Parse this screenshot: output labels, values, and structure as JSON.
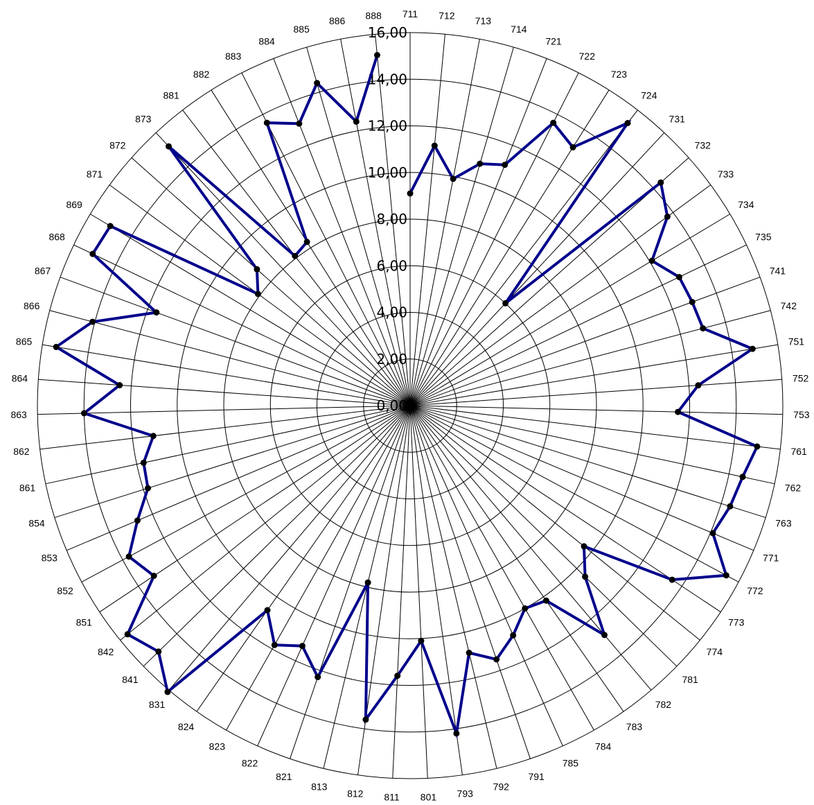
{
  "chart_data": {
    "type": "radar",
    "categories": [
      "711",
      "712",
      "713",
      "714",
      "721",
      "722",
      "723",
      "724",
      "731",
      "732",
      "733",
      "734",
      "735",
      "741",
      "742",
      "751",
      "752",
      "753",
      "761",
      "762",
      "763",
      "771",
      "772",
      "773",
      "774",
      "781",
      "782",
      "783",
      "784",
      "785",
      "791",
      "792",
      "793",
      "801",
      "811",
      "812",
      "813",
      "821",
      "822",
      "823",
      "824",
      "831",
      "841",
      "842",
      "851",
      "852",
      "853",
      "854",
      "861",
      "862",
      "863",
      "864",
      "865",
      "866",
      "867",
      "868",
      "869",
      "871",
      "872",
      "873",
      "881",
      "882",
      "883",
      "884",
      "885",
      "886",
      "888"
    ],
    "ticks": [
      "0,00",
      "2,00",
      "4,00",
      "6,00",
      "8,00",
      "10,00",
      "12,00",
      "14,00",
      "16,00"
    ],
    "rlim": [
      0,
      16
    ],
    "series": [
      {
        "color": "#00008B",
        "values": [
          9.1,
          11.2,
          9.9,
          10.8,
          11.1,
          13.6,
          13.1,
          15.3,
          6.0,
          14.4,
          13.7,
          12.1,
          12.8,
          12.9,
          13.0,
          14.9,
          12.4,
          11.5,
          15.0,
          14.6,
          14.4,
          14.1,
          15.4,
          13.5,
          9.6,
          10.5,
          12.9,
          10.2,
          10.0,
          10.8,
          11.5,
          10.9,
          14.2,
          10.1,
          11.6,
          13.6,
          7.8,
          12.3,
          11.3,
          11.8,
          10.7,
          16.1,
          15.1,
          15.6,
          13.2,
          13.7,
          12.7,
          11.8,
          11.7,
          11.1,
          14.0,
          12.5,
          15.4,
          14.1,
          11.6,
          15.1,
          15.0,
          8.1,
          8.8,
          15.2,
          8.1,
          8.3,
          13.6,
          13.0,
          14.4,
          12.4,
          15.1
        ]
      }
    ],
    "grid": true
  }
}
